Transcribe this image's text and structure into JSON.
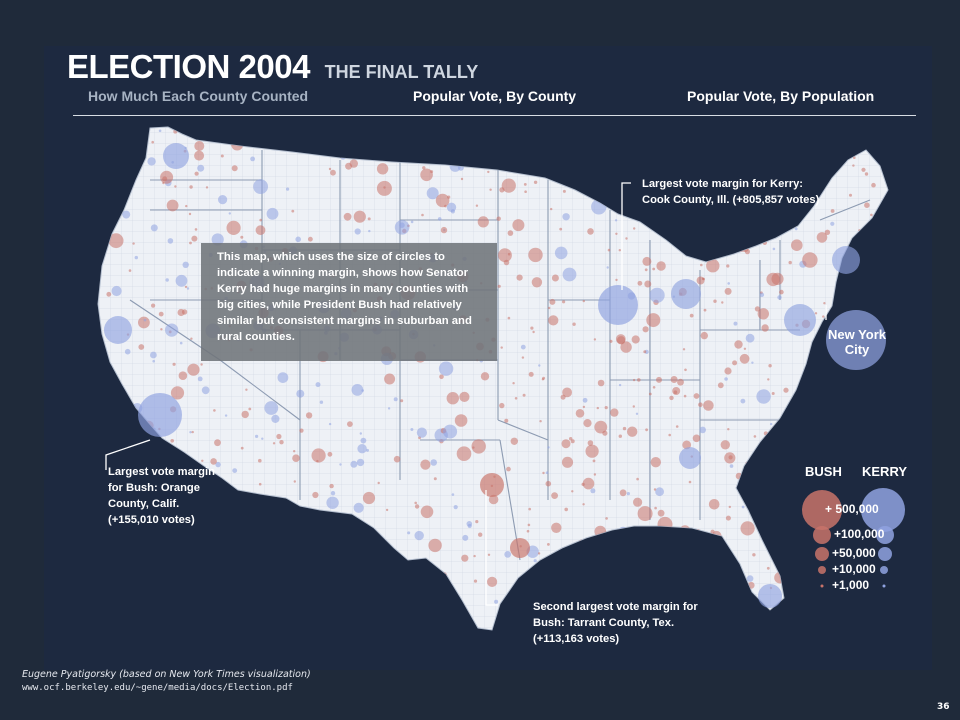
{
  "slide": {
    "title": "ELECTION 2004",
    "subtitle": "THE FINAL TALLY",
    "tabs": [
      "How Much Each County Counted",
      "Popular Vote, By County",
      "Popular Vote, By Population"
    ],
    "info_box": "This map, which uses the size of circles to indicate a winning margin, shows how Senator Kerry had huge margins in many counties with big cities, while President Bush had relatively similar but consistent margins in suburban and rural counties.",
    "callouts": {
      "cook": "Largest vote margin for Kerry: Cook County, Ill. (+805,857 votes)",
      "orange": "Largest vote margin for Bush: Orange County, Calif. (+155,010 votes)",
      "tarrant": "Second largest vote margin for Bush: Tarrant County, Tex. (+113,163 votes)"
    },
    "nyc_label": "New York City",
    "legend": {
      "bush_label": "BUSH",
      "kerry_label": "KERRY",
      "values": [
        "+ 500,000",
        "+100,000",
        "+50,000",
        "+10,000",
        "+1,000"
      ]
    },
    "footer_credit": "Eugene Pyatigorsky (based on New York Times visualization)",
    "footer_url": "www.ocf.berkeley.edu/~gene/media/docs/Election.pdf",
    "page_number": "36"
  },
  "colors": {
    "background": "#1f2a3a",
    "panel": "#1d2940",
    "map_land": "#eef1f6",
    "bush": "#c8736a",
    "kerry": "#8fa2e0"
  }
}
